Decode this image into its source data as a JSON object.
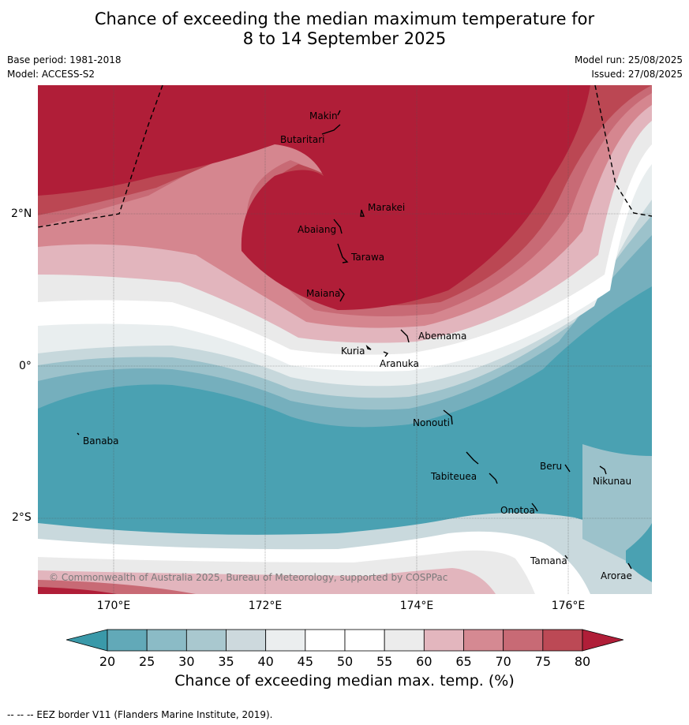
{
  "title": {
    "line1": "Chance of exceeding the median maximum temperature for",
    "line2": "8 to 14 September 2025"
  },
  "meta": {
    "base_period": "Base period: 1981-2018",
    "model": "Model: ACCESS-S2",
    "model_run": "Model run: 25/08/2025",
    "issued": "Issued: 27/08/2025"
  },
  "map": {
    "longitude_labels": [
      "170°E",
      "172°E",
      "174°E",
      "176°E"
    ],
    "latitude_labels": [
      "2°N",
      "0°",
      "2°S"
    ],
    "islands": [
      "Makin",
      "Butaritari",
      "Marakei",
      "Abaiang",
      "Tarawa",
      "Maiana",
      "Abemama",
      "Kuria",
      "Aranuka",
      "Nonouti",
      "Banaba",
      "Beru",
      "Nikunau",
      "Tabiteuea",
      "Onotoa",
      "Tamana",
      "Arorae"
    ],
    "copyright": "© Commonwealth of Australia 2025, Bureau of Meteorology, supported by COSPPac",
    "eez_border_style": "dashed black line"
  },
  "colorbar": {
    "ticks": [
      "20",
      "25",
      "30",
      "35",
      "40",
      "45",
      "50",
      "55",
      "60",
      "65",
      "70",
      "75",
      "80"
    ],
    "colors": [
      "#3a99a9",
      "#62a9b8",
      "#8bbbc6",
      "#a9c8cf",
      "#cdd9dd",
      "#ebeeef",
      "#ffffff",
      "#ffffff",
      "#ececec",
      "#e3b6be",
      "#d58992",
      "#c86a75",
      "#bc4955",
      "#b01e38"
    ],
    "label": "Chance of exceeding median max. temp. (%)"
  },
  "footnote": "-- -- -- EEZ border V11 (Flanders Marine Institute, 2019)."
}
